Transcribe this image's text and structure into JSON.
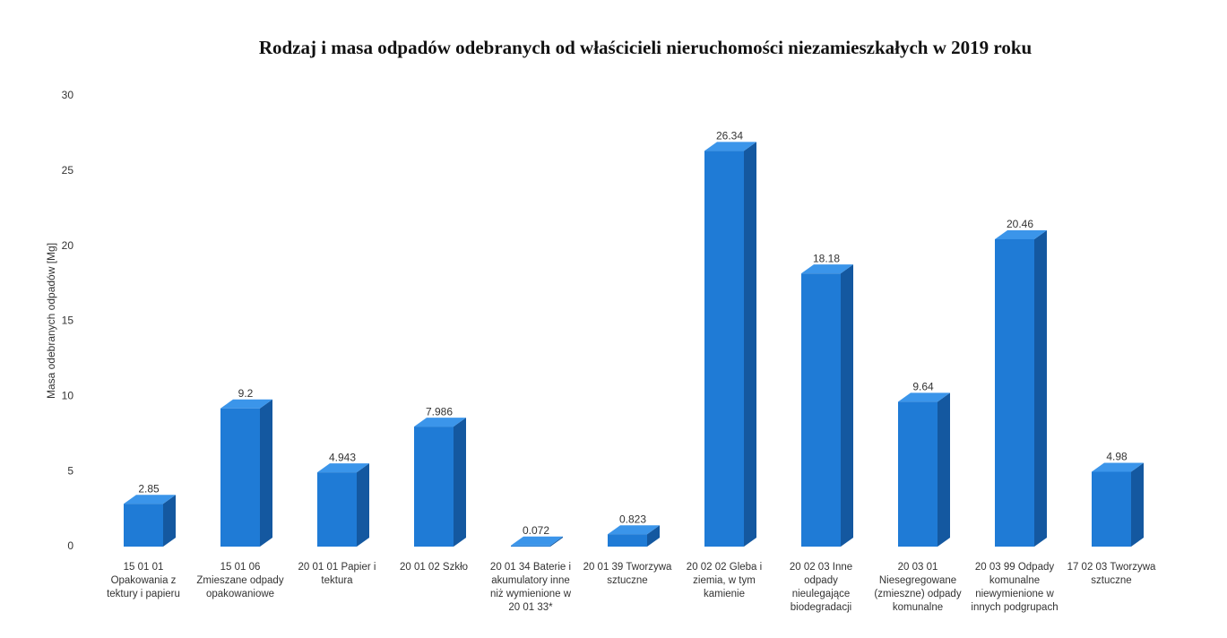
{
  "chart_data": {
    "type": "bar3d",
    "title": "Rodzaj i masa odpadów odebranych od właścicieli nieruchomości niezamieszkałych  w 2019 roku",
    "y_label": "Masa odebranych odpadów [Mg]",
    "categories": [
      "15 01 01 Opakowania z tektury i papieru",
      "15 01 06 Zmieszane odpady opakowaniowe",
      "20 01 01 Papier i tektura",
      "20 01 02 Szkło",
      "20 01 34 Baterie i akumulatory inne niż wymienione w 20 01 33*",
      "20 01 39 Tworzywa sztuczne",
      "20 02 02 Gleba i ziemia, w tym kamienie",
      "20 02 03 Inne odpady nieulegające biodegradacji",
      "20 03 01 Niesegregowane (zmieszne) odpady komunalne",
      "20 03 99 Odpady komunalne niewymienione w innych podgrupach",
      "17 02 03 Tworzywa sztuczne"
    ],
    "values": [
      2.85,
      9.2,
      4.943,
      7.986,
      0.072,
      0.823,
      26.34,
      18.18,
      9.64,
      20.46,
      4.98
    ],
    "color": "#1f7bd6",
    "ylim": [
      0,
      30
    ],
    "yticks": [
      0,
      5,
      10,
      15,
      20,
      25,
      30
    ],
    "grid": false
  }
}
